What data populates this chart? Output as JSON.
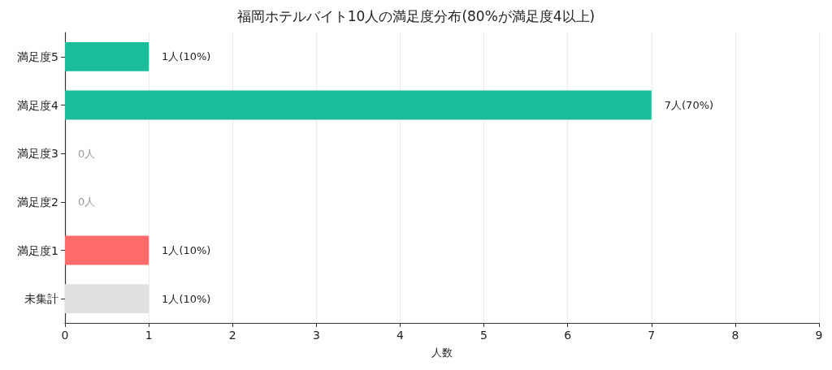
{
  "chart_data": {
    "type": "bar",
    "orientation": "horizontal",
    "title": "福岡ホテルバイト10人の満足度分布(80%が満足度4以上)",
    "xlabel": "人数",
    "categories": [
      "満足度5",
      "満足度4",
      "満足度3",
      "満足度2",
      "満足度1",
      "未集計"
    ],
    "values": [
      1,
      7,
      0,
      0,
      1,
      1
    ],
    "colors": [
      "#1abc9c",
      "#1abc9c",
      "#1abc9c",
      "#1abc9c",
      "#ff6b6b",
      "#e0e0e0"
    ],
    "value_labels": [
      "1人(10%)",
      "7人(70%)",
      "0人",
      "0人",
      "1人(10%)",
      "1人(10%)"
    ],
    "xlim": [
      0,
      9
    ],
    "xticks": [
      0,
      1,
      2,
      3,
      4,
      5,
      6,
      7,
      8,
      9
    ],
    "grid": "x"
  }
}
